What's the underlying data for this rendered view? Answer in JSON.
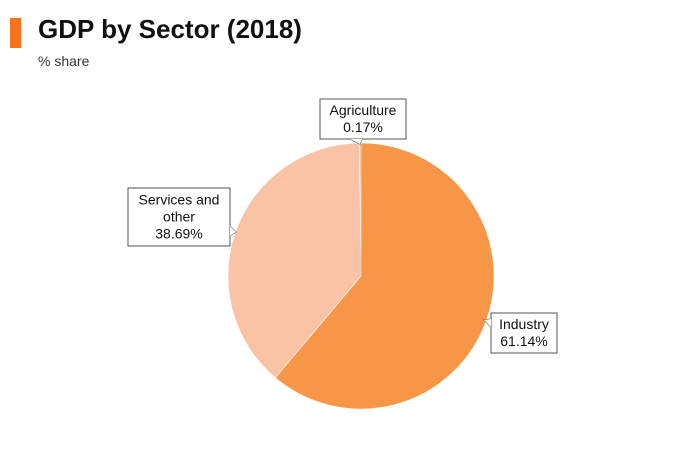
{
  "header": {
    "title": "GDP by Sector (2018)",
    "subtitle": "% share",
    "accent_color": "#f7731c"
  },
  "chart_data": {
    "type": "pie",
    "title": "GDP by Sector (2018)",
    "subtitle": "% share",
    "slices": [
      {
        "label_lines": [
          "Industry",
          "61.14%"
        ],
        "name": "Industry",
        "value": 61.14,
        "color": "#f79646"
      },
      {
        "label_lines": [
          "Services and",
          "other",
          "38.69%"
        ],
        "name": "Services and other",
        "value": 38.69,
        "color": "#fac3a6"
      },
      {
        "label_lines": [
          "Agriculture",
          "0.17%"
        ],
        "name": "Agriculture",
        "value": 0.17,
        "color": "#f5b58a"
      }
    ]
  }
}
